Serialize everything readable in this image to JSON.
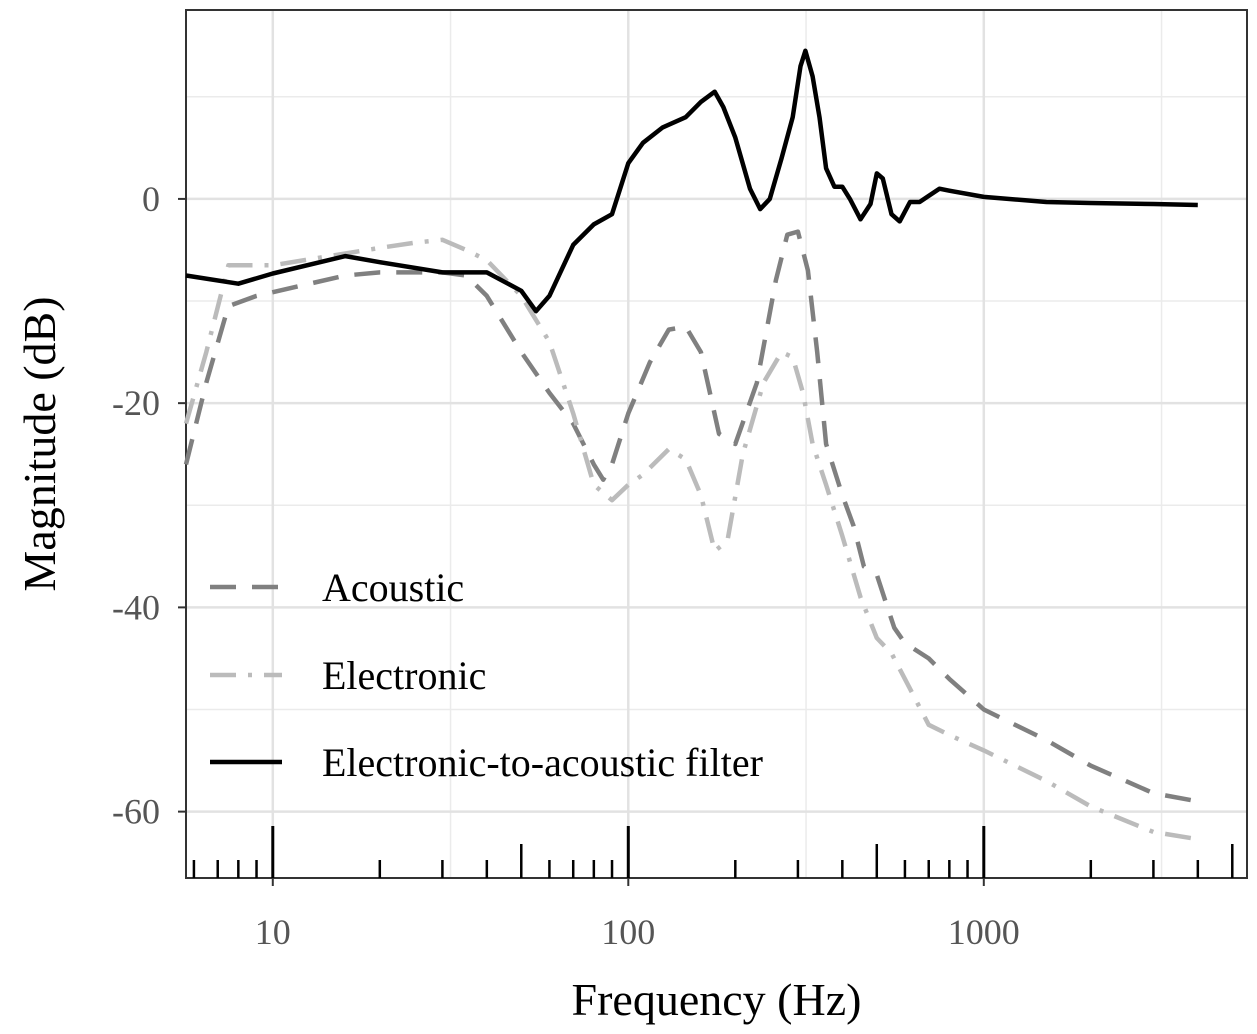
{
  "chart_data": {
    "type": "line",
    "xlabel": "Frequency (Hz)",
    "ylabel": "Magnitude (dB)",
    "x_scale": "log",
    "xlim": [
      5.7,
      5500
    ],
    "ylim": [
      -66.5,
      18.5
    ],
    "x_tick_labels": [
      {
        "value": 10,
        "label": "10"
      },
      {
        "value": 100,
        "label": "100"
      },
      {
        "value": 1000,
        "label": "1000"
      }
    ],
    "y_tick_labels": [
      {
        "value": 0,
        "label": "0"
      },
      {
        "value": -20,
        "label": "-20"
      },
      {
        "value": -40,
        "label": "-40"
      },
      {
        "value": -60,
        "label": "-60"
      }
    ],
    "grid": true,
    "legend_position": "bottom-left",
    "series": [
      {
        "name": "Acoustic",
        "style": "dashed",
        "color": "#808080",
        "points": [
          [
            5.7,
            -26
          ],
          [
            6.5,
            -18
          ],
          [
            7.5,
            -10.5
          ],
          [
            9,
            -9.5
          ],
          [
            12,
            -8.5
          ],
          [
            16,
            -7.5
          ],
          [
            20,
            -7.2
          ],
          [
            30,
            -7.2
          ],
          [
            35,
            -7.5
          ],
          [
            40,
            -9.5
          ],
          [
            50,
            -15
          ],
          [
            60,
            -19
          ],
          [
            70,
            -22
          ],
          [
            80,
            -26
          ],
          [
            85,
            -27.5
          ],
          [
            90,
            -26
          ],
          [
            100,
            -21
          ],
          [
            115,
            -16
          ],
          [
            130,
            -12.8
          ],
          [
            145,
            -12.5
          ],
          [
            160,
            -15
          ],
          [
            180,
            -23
          ],
          [
            200,
            -24
          ],
          [
            230,
            -18
          ],
          [
            260,
            -8
          ],
          [
            280,
            -3.5
          ],
          [
            300,
            -3.2
          ],
          [
            320,
            -7
          ],
          [
            340,
            -15
          ],
          [
            360,
            -24
          ],
          [
            400,
            -29
          ],
          [
            430,
            -32
          ],
          [
            460,
            -36
          ],
          [
            500,
            -36.8
          ],
          [
            530,
            -39.5
          ],
          [
            560,
            -42
          ],
          [
            600,
            -43.5
          ],
          [
            700,
            -45
          ],
          [
            800,
            -47
          ],
          [
            1000,
            -50
          ],
          [
            1500,
            -53
          ],
          [
            2000,
            -55.5
          ],
          [
            3000,
            -58.2
          ],
          [
            4000,
            -59
          ]
        ]
      },
      {
        "name": "Electronic",
        "style": "dash-dot",
        "color": "#bbbbbb",
        "points": [
          [
            5.7,
            -22
          ],
          [
            6.5,
            -15
          ],
          [
            7.5,
            -6.5
          ],
          [
            10,
            -6.5
          ],
          [
            15,
            -5.5
          ],
          [
            20,
            -4.8
          ],
          [
            25,
            -4.3
          ],
          [
            30,
            -4
          ],
          [
            35,
            -5
          ],
          [
            40,
            -6
          ],
          [
            50,
            -9.5
          ],
          [
            60,
            -14
          ],
          [
            70,
            -21
          ],
          [
            80,
            -28
          ],
          [
            90,
            -29.5
          ],
          [
            100,
            -28
          ],
          [
            110,
            -27
          ],
          [
            130,
            -24.5
          ],
          [
            145,
            -25.5
          ],
          [
            160,
            -29
          ],
          [
            175,
            -34.5
          ],
          [
            190,
            -33.5
          ],
          [
            210,
            -25
          ],
          [
            240,
            -18
          ],
          [
            270,
            -15
          ],
          [
            290,
            -15.5
          ],
          [
            310,
            -19
          ],
          [
            330,
            -24
          ],
          [
            360,
            -28
          ],
          [
            400,
            -33
          ],
          [
            450,
            -39
          ],
          [
            500,
            -43
          ],
          [
            550,
            -44.5
          ],
          [
            600,
            -47
          ],
          [
            700,
            -51.5
          ],
          [
            800,
            -52.5
          ],
          [
            1000,
            -54
          ],
          [
            1500,
            -57
          ],
          [
            2000,
            -59.5
          ],
          [
            3000,
            -62
          ],
          [
            4000,
            -62.7
          ]
        ]
      },
      {
        "name": "Electronic-to-acoustic filter",
        "style": "solid",
        "color": "#000000",
        "points": [
          [
            5.7,
            -7.5
          ],
          [
            8,
            -8.3
          ],
          [
            10,
            -7.3
          ],
          [
            16,
            -5.6
          ],
          [
            20,
            -6.2
          ],
          [
            30,
            -7.2
          ],
          [
            40,
            -7.2
          ],
          [
            50,
            -9
          ],
          [
            55,
            -11
          ],
          [
            60,
            -9.5
          ],
          [
            70,
            -4.5
          ],
          [
            80,
            -2.5
          ],
          [
            90,
            -1.5
          ],
          [
            100,
            3.5
          ],
          [
            110,
            5.5
          ],
          [
            125,
            7
          ],
          [
            145,
            8
          ],
          [
            160,
            9.5
          ],
          [
            175,
            10.5
          ],
          [
            185,
            9
          ],
          [
            200,
            6
          ],
          [
            220,
            1
          ],
          [
            235,
            -1
          ],
          [
            250,
            0
          ],
          [
            270,
            4
          ],
          [
            290,
            8
          ],
          [
            305,
            13
          ],
          [
            315,
            14.5
          ],
          [
            330,
            12
          ],
          [
            345,
            8
          ],
          [
            360,
            3
          ],
          [
            380,
            1.2
          ],
          [
            400,
            1.2
          ],
          [
            420,
            0
          ],
          [
            450,
            -2
          ],
          [
            480,
            -0.5
          ],
          [
            500,
            2.5
          ],
          [
            520,
            2
          ],
          [
            550,
            -1.5
          ],
          [
            580,
            -2.2
          ],
          [
            620,
            -0.3
          ],
          [
            660,
            -0.3
          ],
          [
            700,
            0.3
          ],
          [
            750,
            1
          ],
          [
            800,
            0.8
          ],
          [
            1000,
            0.2
          ],
          [
            1500,
            -0.3
          ],
          [
            2000,
            -0.4
          ],
          [
            3000,
            -0.5
          ],
          [
            4000,
            -0.6
          ]
        ]
      }
    ]
  }
}
